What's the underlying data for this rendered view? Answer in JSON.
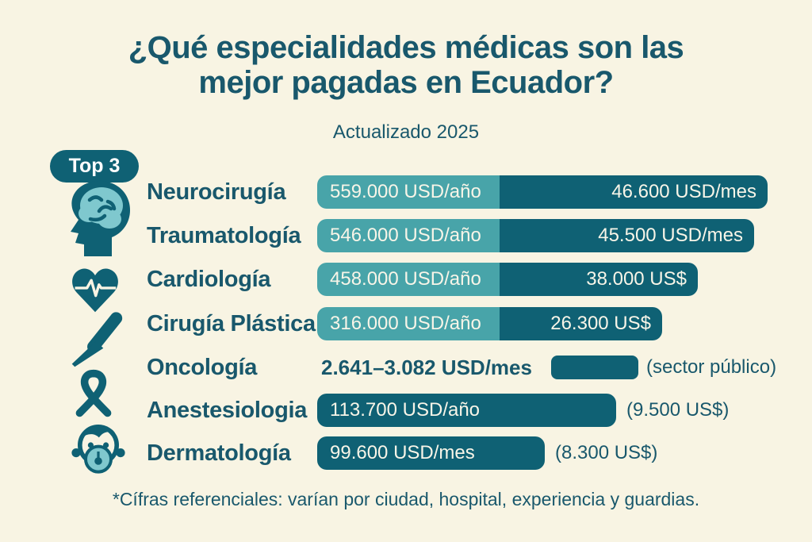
{
  "header": {
    "title_line1": "¿Qué especialidades médicas son las",
    "title_line2": "mejor pagadas en Ecuador?",
    "subtitle": "Actualizado 2025",
    "badge": "Top 3"
  },
  "footer": {
    "note": "*Cífras referenciales: varían por ciudad, hospital, experiencia y guardias."
  },
  "colors": {
    "background": "#F8F4E3",
    "ink": "#19586C",
    "bar_dark": "#0F6174",
    "bar_light": "#48A4A9",
    "bar_text": "#F8F5E8",
    "icon_light": "#7FC8CE"
  },
  "chart_data": {
    "type": "bar",
    "title": "¿Qué especialidades médicas son las mejor pagadas en Ecuador?",
    "subtitle": "Actualizado 2025",
    "unit": "USD",
    "legend_position": "none",
    "grid": false,
    "rows": [
      {
        "specialty": "Neurocirugía",
        "icon": "brain-head-icon",
        "annual_label": "559.000 USD/año",
        "monthly_label": "46.600 USD/mes",
        "annual_usd": 559000,
        "monthly_usd": 46600,
        "bar": {
          "light_w": 230,
          "dark_w": 338
        }
      },
      {
        "specialty": "Traumatología",
        "icon": "brain-head-icon",
        "annual_label": "546.000 USD/año",
        "monthly_label": "45.500 USD/mes",
        "annual_usd": 546000,
        "monthly_usd": 45500,
        "bar": {
          "light_w": 230,
          "dark_w": 321
        }
      },
      {
        "specialty": "Cardiología",
        "icon": "heart-pulse-icon",
        "annual_label": "458.000 USD/año",
        "monthly_label": "38.000 US$",
        "annual_usd": 458000,
        "monthly_usd": 38000,
        "bar": {
          "light_w": 230,
          "dark_w": 250
        }
      },
      {
        "specialty": "Cirugía Plástica",
        "icon": "scalpel-icon",
        "annual_label": "316.000 USD/año",
        "monthly_label": "26.300 US$",
        "annual_usd": 316000,
        "monthly_usd": 26300,
        "bar": {
          "light_w": 230,
          "dark_w": 205
        }
      },
      {
        "specialty": "Oncología",
        "icon": "ribbon-icon",
        "range_label": "2.641–3.082 USD/mes",
        "note": "(sector público)",
        "monthly_usd_min": 2641,
        "monthly_usd_max": 3082,
        "bar": {
          "small_w": 110
        }
      },
      {
        "specialty": "Anestesiologia",
        "icon": "ribbon-icon",
        "annual_label": "113.700 USD/año",
        "note": "(9.500 US$)",
        "annual_usd": 113700,
        "monthly_usd": 9500,
        "bar": {
          "full_w": 377
        }
      },
      {
        "specialty": "Dermatología",
        "icon": "masked-face-icon",
        "monthly_label": "99.600 USD/mes",
        "note": "(8.300 US$)",
        "monthly_usd": 99600,
        "alt_usd": 8300,
        "bar": {
          "full_w": 287
        }
      }
    ]
  }
}
